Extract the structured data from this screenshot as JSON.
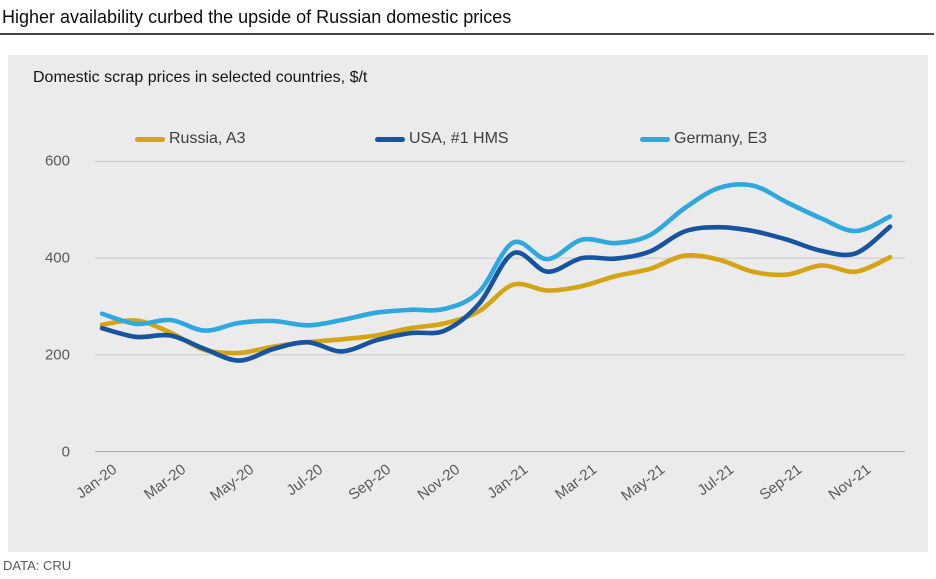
{
  "page": {
    "title": "Higher availability curbed the upside of Russian domestic prices",
    "footer": "DATA: CRU"
  },
  "chart": {
    "subtitle": "Domestic scrap prices in selected countries, $/t"
  },
  "chart_data": {
    "type": "line",
    "title": "Domestic scrap prices in selected countries, $/t",
    "unit": "$/t",
    "x": [
      "Jan-20",
      "Feb-20",
      "Mar-20",
      "Apr-20",
      "May-20",
      "Jun-20",
      "Jul-20",
      "Aug-20",
      "Sep-20",
      "Oct-20",
      "Nov-20",
      "Dec-20",
      "Jan-21",
      "Feb-21",
      "Mar-21",
      "Apr-21",
      "May-21",
      "Jun-21",
      "Jul-21",
      "Aug-21",
      "Sep-21",
      "Oct-21",
      "Nov-21",
      "Dec-21"
    ],
    "x_tick_labels": [
      "Jan-20",
      "Mar-20",
      "May-20",
      "Jul-20",
      "Sep-20",
      "Nov-20",
      "Jan-21",
      "Mar-21",
      "May-21",
      "Jul-21",
      "Sep-21",
      "Nov-21"
    ],
    "series": [
      {
        "name": "Russia, A3",
        "color": "#d5a414",
        "values": [
          262,
          271,
          246,
          210,
          204,
          217,
          226,
          232,
          240,
          255,
          265,
          290,
          345,
          333,
          342,
          363,
          378,
          405,
          397,
          372,
          366,
          385,
          372,
          402
        ]
      },
      {
        "name": "USA, #1 HMS",
        "color": "#16549f",
        "values": [
          255,
          237,
          240,
          212,
          188,
          212,
          226,
          207,
          230,
          245,
          250,
          305,
          410,
          372,
          400,
          399,
          414,
          455,
          464,
          456,
          438,
          415,
          410,
          465
        ]
      },
      {
        "name": "Germany, E3",
        "color": "#2ea8df",
        "values": [
          285,
          264,
          272,
          250,
          266,
          270,
          261,
          272,
          287,
          293,
          295,
          330,
          432,
          398,
          438,
          431,
          448,
          503,
          545,
          550,
          515,
          482,
          456,
          486
        ]
      }
    ],
    "ylim": [
      0,
      600
    ],
    "y_ticks": [
      0,
      200,
      400,
      600
    ],
    "grid": "horizontal",
    "legend_position": "top"
  }
}
